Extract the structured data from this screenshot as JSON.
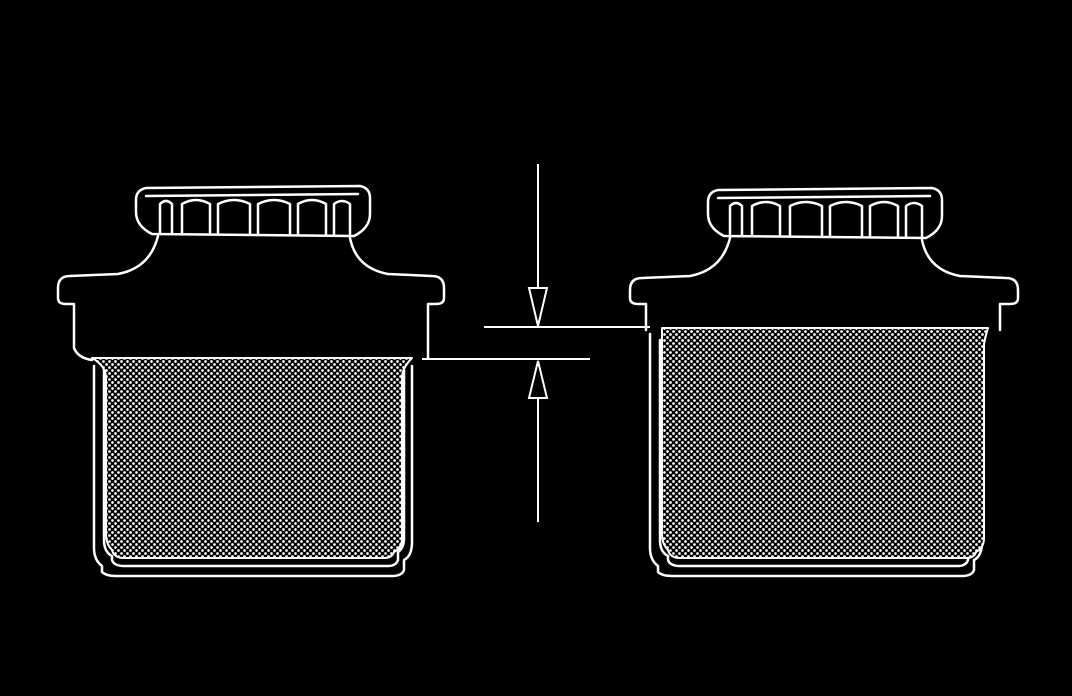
{
  "diagram": {
    "subject": "two-reservoirs-fluid-level-comparison",
    "colors": {
      "background": "#000000",
      "line": "#ffffff",
      "fluid_dot": "#ffffff"
    },
    "reservoirs": [
      {
        "id": "left",
        "fluid_level": "lower"
      },
      {
        "id": "right",
        "fluid_level": "higher"
      }
    ],
    "dimension": {
      "kind": "level-difference",
      "arrows": [
        "down",
        "up"
      ]
    }
  }
}
